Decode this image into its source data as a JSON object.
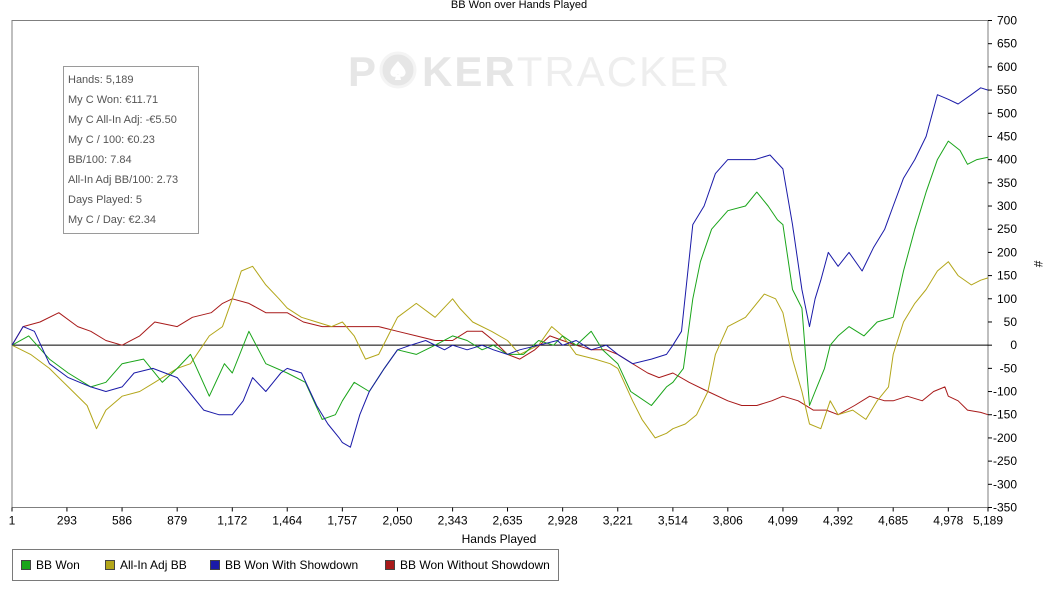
{
  "colors": {
    "bb_won": "#1aa51a",
    "all_in_adj_bb": "#b3a61a",
    "bb_won_with_showdown": "#1a1aa8",
    "bb_won_without_showdown": "#a81a1a"
  },
  "watermark": {
    "part1": "P",
    "part2": "KER",
    "part3": "TRACKER"
  },
  "stats": [
    "Hands: 5,189",
    "My C Won: €11.71",
    "My C All-In Adj: -€5.50",
    "My C / 100: €0.23",
    "BB/100: 7.84",
    "All-In Adj BB/100: 2.73",
    "Days Played: 5",
    "My C / Day: €2.34"
  ],
  "legend": [
    {
      "label": "BB Won",
      "color": "#1aa51a"
    },
    {
      "label": "All-In Adj BB",
      "color": "#b3a61a"
    },
    {
      "label": "BB Won With Showdown",
      "color": "#1a1aa8"
    },
    {
      "label": "BB Won Without Showdown",
      "color": "#a81a1a"
    }
  ],
  "chart_data": {
    "type": "line",
    "title": "BB Won over Hands Played",
    "xlabel": "Hands Played",
    "ylabel": "#",
    "xlim": [
      1,
      5189
    ],
    "ylim": [
      -350,
      700
    ],
    "x_ticks": [
      1,
      293,
      586,
      879,
      1172,
      1464,
      1757,
      2050,
      2343,
      2635,
      2928,
      3221,
      3514,
      3806,
      4099,
      4392,
      4685,
      4978,
      5189
    ],
    "x_tick_labels": [
      "1",
      "293",
      "586",
      "879",
      "1,172",
      "1,464",
      "1,757",
      "2,050",
      "2,343",
      "2,635",
      "2,928",
      "3,221",
      "3,514",
      "3,806",
      "4,099",
      "4,392",
      "4,685",
      "4,978",
      "5,189"
    ],
    "y_ticks": [
      -350,
      -300,
      -250,
      -200,
      -150,
      -100,
      -50,
      0,
      50,
      100,
      150,
      200,
      250,
      300,
      350,
      400,
      450,
      500,
      550,
      600,
      650,
      700
    ],
    "legend_position": "bottom-left",
    "grid": false,
    "series": [
      {
        "name": "BB Won",
        "values": [
          [
            1,
            0
          ],
          [
            90,
            20
          ],
          [
            200,
            -30
          ],
          [
            300,
            -60
          ],
          [
            420,
            -90
          ],
          [
            500,
            -80
          ],
          [
            586,
            -40
          ],
          [
            700,
            -30
          ],
          [
            800,
            -80
          ],
          [
            879,
            -50
          ],
          [
            950,
            -20
          ],
          [
            1050,
            -110
          ],
          [
            1130,
            -40
          ],
          [
            1172,
            -60
          ],
          [
            1260,
            30
          ],
          [
            1350,
            -40
          ],
          [
            1464,
            -60
          ],
          [
            1560,
            -80
          ],
          [
            1650,
            -160
          ],
          [
            1720,
            -150
          ],
          [
            1757,
            -120
          ],
          [
            1820,
            -80
          ],
          [
            1900,
            -100
          ],
          [
            1980,
            -50
          ],
          [
            2050,
            -10
          ],
          [
            2150,
            -20
          ],
          [
            2250,
            0
          ],
          [
            2343,
            20
          ],
          [
            2420,
            10
          ],
          [
            2500,
            -10
          ],
          [
            2560,
            0
          ],
          [
            2635,
            -20
          ],
          [
            2720,
            -20
          ],
          [
            2800,
            10
          ],
          [
            2880,
            0
          ],
          [
            2928,
            20
          ],
          [
            3000,
            0
          ],
          [
            3080,
            30
          ],
          [
            3140,
            -10
          ],
          [
            3221,
            -40
          ],
          [
            3290,
            -100
          ],
          [
            3400,
            -130
          ],
          [
            3480,
            -90
          ],
          [
            3514,
            -80
          ],
          [
            3570,
            -50
          ],
          [
            3620,
            100
          ],
          [
            3660,
            180
          ],
          [
            3720,
            250
          ],
          [
            3806,
            290
          ],
          [
            3900,
            300
          ],
          [
            3960,
            330
          ],
          [
            4020,
            300
          ],
          [
            4070,
            270
          ],
          [
            4099,
            260
          ],
          [
            4150,
            120
          ],
          [
            4200,
            80
          ],
          [
            4240,
            -130
          ],
          [
            4270,
            -100
          ],
          [
            4320,
            -50
          ],
          [
            4350,
            0
          ],
          [
            4392,
            20
          ],
          [
            4450,
            40
          ],
          [
            4530,
            20
          ],
          [
            4600,
            50
          ],
          [
            4685,
            60
          ],
          [
            4740,
            160
          ],
          [
            4800,
            250
          ],
          [
            4860,
            330
          ],
          [
            4920,
            400
          ],
          [
            4978,
            440
          ],
          [
            5040,
            420
          ],
          [
            5080,
            390
          ],
          [
            5130,
            400
          ],
          [
            5189,
            405
          ]
        ]
      },
      {
        "name": "All-In Adj BB",
        "values": [
          [
            1,
            0
          ],
          [
            100,
            -20
          ],
          [
            200,
            -50
          ],
          [
            300,
            -90
          ],
          [
            400,
            -130
          ],
          [
            450,
            -180
          ],
          [
            500,
            -140
          ],
          [
            586,
            -110
          ],
          [
            680,
            -100
          ],
          [
            760,
            -80
          ],
          [
            879,
            -50
          ],
          [
            950,
            -40
          ],
          [
            1050,
            20
          ],
          [
            1120,
            40
          ],
          [
            1172,
            100
          ],
          [
            1220,
            160
          ],
          [
            1280,
            170
          ],
          [
            1350,
            130
          ],
          [
            1420,
            100
          ],
          [
            1464,
            80
          ],
          [
            1540,
            60
          ],
          [
            1620,
            50
          ],
          [
            1700,
            40
          ],
          [
            1757,
            50
          ],
          [
            1820,
            20
          ],
          [
            1880,
            -30
          ],
          [
            1950,
            -20
          ],
          [
            2000,
            20
          ],
          [
            2050,
            60
          ],
          [
            2150,
            90
          ],
          [
            2250,
            60
          ],
          [
            2343,
            100
          ],
          [
            2380,
            80
          ],
          [
            2450,
            50
          ],
          [
            2550,
            30
          ],
          [
            2635,
            10
          ],
          [
            2700,
            -20
          ],
          [
            2800,
            0
          ],
          [
            2870,
            40
          ],
          [
            2928,
            20
          ],
          [
            3000,
            -20
          ],
          [
            3100,
            -30
          ],
          [
            3180,
            -40
          ],
          [
            3221,
            -50
          ],
          [
            3300,
            -120
          ],
          [
            3350,
            -160
          ],
          [
            3420,
            -200
          ],
          [
            3480,
            -190
          ],
          [
            3514,
            -180
          ],
          [
            3580,
            -170
          ],
          [
            3640,
            -150
          ],
          [
            3700,
            -100
          ],
          [
            3740,
            -20
          ],
          [
            3806,
            40
          ],
          [
            3900,
            60
          ],
          [
            4000,
            110
          ],
          [
            4060,
            100
          ],
          [
            4099,
            70
          ],
          [
            4150,
            -30
          ],
          [
            4200,
            -100
          ],
          [
            4240,
            -170
          ],
          [
            4300,
            -180
          ],
          [
            4350,
            -120
          ],
          [
            4392,
            -150
          ],
          [
            4470,
            -140
          ],
          [
            4540,
            -160
          ],
          [
            4600,
            -120
          ],
          [
            4660,
            -90
          ],
          [
            4685,
            -20
          ],
          [
            4740,
            50
          ],
          [
            4800,
            90
          ],
          [
            4860,
            120
          ],
          [
            4920,
            160
          ],
          [
            4978,
            180
          ],
          [
            5030,
            150
          ],
          [
            5100,
            130
          ],
          [
            5150,
            140
          ],
          [
            5189,
            145
          ]
        ]
      },
      {
        "name": "BB Won With Showdown",
        "values": [
          [
            1,
            0
          ],
          [
            60,
            40
          ],
          [
            120,
            30
          ],
          [
            200,
            -40
          ],
          [
            300,
            -70
          ],
          [
            420,
            -90
          ],
          [
            500,
            -100
          ],
          [
            586,
            -90
          ],
          [
            650,
            -60
          ],
          [
            750,
            -50
          ],
          [
            879,
            -70
          ],
          [
            940,
            -100
          ],
          [
            1020,
            -140
          ],
          [
            1100,
            -150
          ],
          [
            1172,
            -150
          ],
          [
            1230,
            -120
          ],
          [
            1280,
            -70
          ],
          [
            1350,
            -100
          ],
          [
            1430,
            -60
          ],
          [
            1464,
            -50
          ],
          [
            1540,
            -60
          ],
          [
            1620,
            -130
          ],
          [
            1680,
            -170
          ],
          [
            1740,
            -200
          ],
          [
            1757,
            -210
          ],
          [
            1800,
            -220
          ],
          [
            1850,
            -150
          ],
          [
            1900,
            -100
          ],
          [
            1980,
            -50
          ],
          [
            2050,
            -10
          ],
          [
            2120,
            0
          ],
          [
            2200,
            10
          ],
          [
            2300,
            -10
          ],
          [
            2343,
            0
          ],
          [
            2420,
            -10
          ],
          [
            2500,
            0
          ],
          [
            2560,
            -10
          ],
          [
            2635,
            -20
          ],
          [
            2700,
            -10
          ],
          [
            2800,
            0
          ],
          [
            2900,
            10
          ],
          [
            2928,
            0
          ],
          [
            3000,
            10
          ],
          [
            3080,
            -10
          ],
          [
            3160,
            0
          ],
          [
            3221,
            -20
          ],
          [
            3300,
            -40
          ],
          [
            3400,
            -30
          ],
          [
            3480,
            -20
          ],
          [
            3514,
            0
          ],
          [
            3560,
            30
          ],
          [
            3620,
            260
          ],
          [
            3680,
            300
          ],
          [
            3740,
            370
          ],
          [
            3806,
            400
          ],
          [
            3880,
            400
          ],
          [
            3950,
            400
          ],
          [
            4030,
            410
          ],
          [
            4099,
            380
          ],
          [
            4150,
            260
          ],
          [
            4200,
            120
          ],
          [
            4240,
            40
          ],
          [
            4270,
            100
          ],
          [
            4300,
            140
          ],
          [
            4340,
            200
          ],
          [
            4392,
            170
          ],
          [
            4450,
            200
          ],
          [
            4520,
            160
          ],
          [
            4580,
            210
          ],
          [
            4640,
            250
          ],
          [
            4685,
            300
          ],
          [
            4740,
            360
          ],
          [
            4800,
            400
          ],
          [
            4860,
            450
          ],
          [
            4920,
            540
          ],
          [
            4978,
            530
          ],
          [
            5030,
            520
          ],
          [
            5100,
            540
          ],
          [
            5150,
            555
          ],
          [
            5189,
            550
          ]
        ]
      },
      {
        "name": "BB Won Without Showdown",
        "values": [
          [
            1,
            0
          ],
          [
            60,
            40
          ],
          [
            150,
            50
          ],
          [
            250,
            70
          ],
          [
            350,
            40
          ],
          [
            420,
            30
          ],
          [
            500,
            10
          ],
          [
            586,
            0
          ],
          [
            680,
            20
          ],
          [
            760,
            50
          ],
          [
            879,
            40
          ],
          [
            960,
            60
          ],
          [
            1060,
            70
          ],
          [
            1120,
            90
          ],
          [
            1172,
            100
          ],
          [
            1260,
            90
          ],
          [
            1350,
            70
          ],
          [
            1464,
            70
          ],
          [
            1550,
            50
          ],
          [
            1650,
            40
          ],
          [
            1757,
            40
          ],
          [
            1850,
            40
          ],
          [
            1950,
            40
          ],
          [
            2050,
            30
          ],
          [
            2150,
            20
          ],
          [
            2250,
            10
          ],
          [
            2343,
            10
          ],
          [
            2420,
            30
          ],
          [
            2500,
            30
          ],
          [
            2560,
            10
          ],
          [
            2635,
            -20
          ],
          [
            2700,
            -30
          ],
          [
            2780,
            -10
          ],
          [
            2860,
            20
          ],
          [
            2928,
            10
          ],
          [
            3000,
            0
          ],
          [
            3080,
            -10
          ],
          [
            3160,
            -10
          ],
          [
            3221,
            -20
          ],
          [
            3300,
            -40
          ],
          [
            3380,
            -60
          ],
          [
            3440,
            -70
          ],
          [
            3514,
            -60
          ],
          [
            3600,
            -80
          ],
          [
            3700,
            -100
          ],
          [
            3806,
            -120
          ],
          [
            3880,
            -130
          ],
          [
            3960,
            -130
          ],
          [
            4040,
            -120
          ],
          [
            4099,
            -110
          ],
          [
            4180,
            -120
          ],
          [
            4260,
            -140
          ],
          [
            4330,
            -140
          ],
          [
            4392,
            -150
          ],
          [
            4480,
            -130
          ],
          [
            4560,
            -110
          ],
          [
            4640,
            -120
          ],
          [
            4685,
            -120
          ],
          [
            4760,
            -110
          ],
          [
            4840,
            -120
          ],
          [
            4900,
            -100
          ],
          [
            4960,
            -90
          ],
          [
            4978,
            -110
          ],
          [
            5030,
            -120
          ],
          [
            5080,
            -140
          ],
          [
            5150,
            -145
          ],
          [
            5189,
            -150
          ]
        ]
      }
    ]
  }
}
